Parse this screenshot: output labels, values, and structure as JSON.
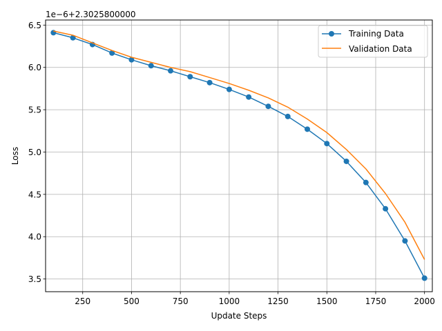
{
  "chart_data": {
    "type": "line",
    "xlabel": "Update Steps",
    "ylabel": "Loss",
    "offset_text": "1e−6+2.3025800000",
    "xlim": [
      60,
      2040
    ],
    "ylim": [
      3.35,
      6.56
    ],
    "xticks": [
      250,
      500,
      750,
      1000,
      1250,
      1500,
      1750,
      2000
    ],
    "yticks": [
      3.5,
      4.0,
      4.5,
      5.0,
      5.5,
      6.0,
      6.5
    ],
    "ytick_labels": [
      "3.5",
      "4.0",
      "4.5",
      "5.0",
      "5.5",
      "6.0",
      "6.5"
    ],
    "grid": true,
    "legend_position": "top-right",
    "x": [
      100,
      200,
      300,
      400,
      500,
      600,
      700,
      800,
      900,
      1000,
      1100,
      1200,
      1300,
      1400,
      1500,
      1600,
      1700,
      1800,
      1900,
      2000
    ],
    "series": [
      {
        "name": "Training Data",
        "color": "#1f77b4",
        "marker": "circle",
        "values": [
          6.41,
          6.35,
          6.27,
          6.17,
          6.09,
          6.02,
          5.96,
          5.89,
          5.82,
          5.74,
          5.65,
          5.54,
          5.42,
          5.27,
          5.1,
          4.89,
          4.64,
          4.33,
          3.95,
          3.51
        ]
      },
      {
        "name": "Validation Data",
        "color": "#ff7f0e",
        "marker": "none",
        "values": [
          6.43,
          6.38,
          6.29,
          6.2,
          6.12,
          6.06,
          6.0,
          5.95,
          5.88,
          5.81,
          5.73,
          5.64,
          5.53,
          5.39,
          5.23,
          5.03,
          4.8,
          4.51,
          4.17,
          3.73
        ]
      }
    ]
  }
}
